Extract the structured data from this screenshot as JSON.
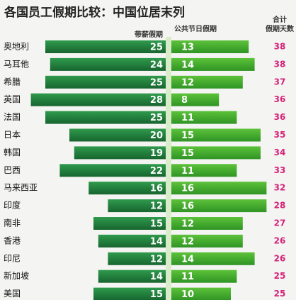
{
  "chart_data": {
    "type": "diverging_bar",
    "title": "各国员工假期比较：中国位居末列",
    "categories": [
      "奥地利",
      "马耳他",
      "希腊",
      "英国",
      "法国",
      "日本",
      "韩国",
      "巴西",
      "马来西亚",
      "印度",
      "南非",
      "香港",
      "印尼",
      "新加坡",
      "美国"
    ],
    "series": [
      {
        "name": "带薪假期",
        "color": "#1f7a3a",
        "values": [
          25,
          24,
          25,
          28,
          25,
          20,
          19,
          22,
          16,
          12,
          15,
          14,
          12,
          14,
          15
        ]
      },
      {
        "name": "公共节日假期",
        "color": "#45ad2f",
        "values": [
          13,
          14,
          12,
          8,
          11,
          15,
          15,
          11,
          16,
          16,
          12,
          12,
          14,
          11,
          10
        ]
      },
      {
        "name": "合计\n假期天数",
        "color": "#d6247a",
        "values": [
          38,
          38,
          37,
          36,
          36,
          35,
          34,
          33,
          32,
          28,
          27,
          26,
          26,
          25,
          25
        ]
      }
    ]
  }
}
